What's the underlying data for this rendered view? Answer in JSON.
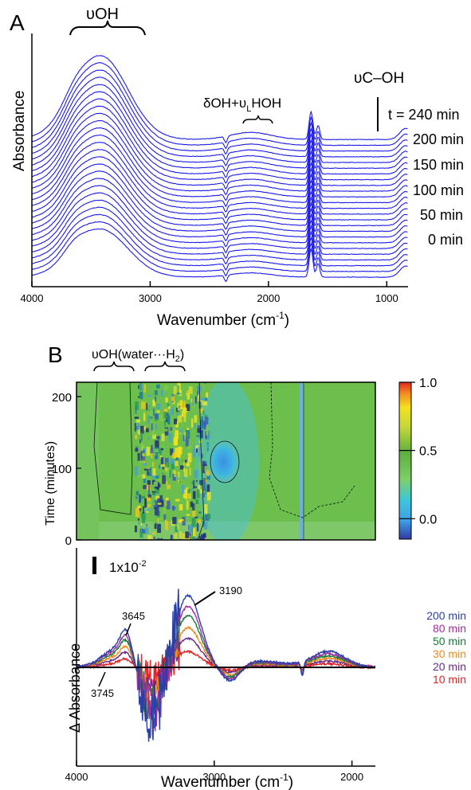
{
  "figure": {
    "panel_a_letter": "A",
    "panel_b_letter": "B"
  },
  "chart_data": [
    {
      "type": "line",
      "panel": "A",
      "xlabel": "Wavenumber (cm-1)",
      "xlabel_main": "Wavenumber (cm",
      "xlabel_sup": "-1",
      "xlabel_close": ")",
      "ylabel": "Absorbance",
      "x_ticks": [
        4000,
        3000,
        2000,
        1000
      ],
      "xlim": [
        4000,
        820
      ],
      "x_reversed": true,
      "series_count": 25,
      "series_color": "#1a1aee",
      "time_labels": [
        "t = 240 min",
        "200 min",
        "150 min",
        "100 min",
        "50 min",
        "0 min"
      ],
      "annotations": {
        "voh": "υOH",
        "doh_a": "δOH+υ",
        "doh_sub": "L",
        "doh_b": "HOH",
        "vcoh": "υC–OH"
      }
    },
    {
      "type": "heatmap",
      "panel": "B-top",
      "ylabel": "Time (minutes)",
      "y_ticks": [
        200,
        100,
        0
      ],
      "ylim": [
        0,
        220
      ],
      "xlim": [
        4000,
        1830
      ],
      "annotation": {
        "main": "υOH(water···H",
        "sub": "2",
        "close": ")"
      },
      "colorbar": {
        "ticks": [
          "1.0",
          "0.5",
          "0.0"
        ],
        "range": [
          -0.15,
          1.0
        ]
      }
    },
    {
      "type": "line",
      "panel": "B-bottom",
      "xlabel": "Wavenumber (cm-1)",
      "xlabel_main": "Wavenumber (cm",
      "xlabel_sup": "-1",
      "xlabel_close": ")",
      "ylabel": "Δ Absorbance",
      "x_ticks": [
        4000,
        3000,
        2000
      ],
      "xlim": [
        4000,
        1830
      ],
      "scale_bar_main": "1x10",
      "scale_bar_sup": "-2",
      "peak_labels": [
        "3645",
        "3190",
        "3745"
      ],
      "series": [
        {
          "name": "200 min",
          "color": "#2a3fa8"
        },
        {
          "name": "80 min",
          "color": "#a42d9e"
        },
        {
          "name": "50 min",
          "color": "#197a3a"
        },
        {
          "name": "30 min",
          "color": "#f08a1e"
        },
        {
          "name": "20 min",
          "color": "#6a2a8e"
        },
        {
          "name": "10 min",
          "color": "#e52224"
        }
      ]
    }
  ]
}
